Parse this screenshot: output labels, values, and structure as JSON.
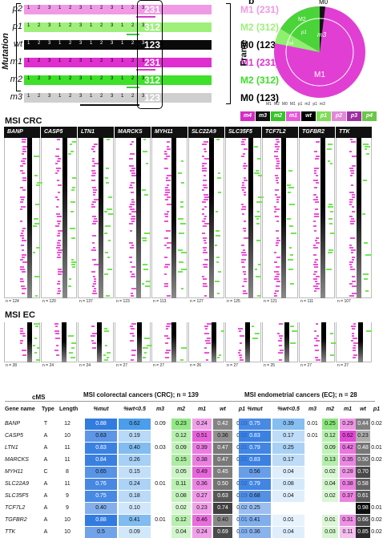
{
  "panel_a": {
    "axis_label": "Mutation",
    "frame_label": "Frame",
    "rows": [
      {
        "label": "p2",
        "code": "M1 (231)",
        "hl": "231",
        "color": "#f09ae6",
        "seq": "1 2 3 1 2 3 1 2 3 1 2 3"
      },
      {
        "label": "p1",
        "code": "M2 (312)",
        "hl": "312",
        "color": "#9ef07a",
        "seq": "1 2 3 1 2 3 1 2 3 1 2 3"
      },
      {
        "label": "wt",
        "code": "M0 (123)",
        "hl": "123",
        "color": "#0a0a0a",
        "seq": "1 2 3 1 2 3 1 2 3 1 2 3"
      },
      {
        "label": "m1",
        "code": "M1 (231)",
        "hl": "231",
        "color": "#e02fd0",
        "seq": "1 2 3 1 2 3 1 2 3 1 2 3"
      },
      {
        "label": "m2",
        "code": "M2 (312)",
        "hl": "312",
        "color": "#3ee02a",
        "seq": "1 2 3 1 2 3 1 2 3 1 2 3"
      },
      {
        "label": "m3",
        "code": "M0 (123)",
        "hl": "123",
        "color": "#cfcfcf",
        "seq": "1 2 3 1 2 3 1 2 3 1 2 3"
      }
    ]
  },
  "panel_b_pie": {
    "corner_label": "b",
    "labels": {
      "m0": "M0",
      "m1": "M1",
      "m2": "M2",
      "p1": "p1",
      "m3": "m3",
      "m4": "m4"
    }
  },
  "legend": {
    "items": [
      "M1",
      "M2",
      "M0",
      "M1",
      "p1",
      "m2",
      "p1",
      "m3"
    ],
    "chips": [
      {
        "label": "m4",
        "color": "#d12fc3"
      },
      {
        "label": "m3",
        "color": "#111111"
      },
      {
        "label": "m2",
        "color": "#38c32a"
      },
      {
        "label": "m1",
        "color": "#e45ad8"
      },
      {
        "label": "wt",
        "color": "#000000"
      },
      {
        "label": "p1",
        "color": "#7fdc5a"
      },
      {
        "label": "p2",
        "color": "#e388d9"
      },
      {
        "label": "p3",
        "color": "#9b2fa0"
      },
      {
        "label": "p4",
        "color": "#6bc64b"
      }
    ]
  },
  "msi_crc": {
    "title": "MSI CRC",
    "genes": [
      "BANP",
      "CASP5",
      "LTN1",
      "MARCKS",
      "MYH11",
      "SLC22A9",
      "SLC35F5",
      "TCF7L2",
      "TGFBR2",
      "TTK"
    ],
    "n": [
      "n = 124",
      "n = 120",
      "n = 137",
      "n = 123",
      "n = 113",
      "n = 127",
      "n = 125",
      "n = 121",
      "n = 111",
      "n = 107"
    ]
  },
  "msi_ec": {
    "title": "MSI EC",
    "n": [
      "n = 28",
      "n = 24",
      "n = 24",
      "n = 27",
      "n = 27",
      "n = 26",
      "n = 27",
      "n = 25",
      "n = 27",
      "n = 27"
    ]
  },
  "table": {
    "cms_label": "cMS",
    "crc_header": "MSI colorectal cancers (CRC); n = 139",
    "ec_header": "MSI endometrial cancers (EC); n = 28",
    "col_gene": "Gene name",
    "col_type": "Type",
    "col_length": "Length",
    "sub_cols": [
      "%mut",
      "%wt<0.5",
      "m3",
      "m2",
      "m1",
      "wt",
      "p1"
    ],
    "rows": [
      {
        "gene": "BANP",
        "type": "T",
        "len": "12",
        "crc": [
          "0.88",
          "0.62",
          "0.09",
          "0.23",
          "0.24",
          "0.42",
          "0.03"
        ],
        "ec": [
          "0.75",
          "0.39",
          "0.01",
          "0.25",
          "0.29",
          "0.44",
          "0.02"
        ]
      },
      {
        "gene": "CASP5",
        "type": "A",
        "len": "10",
        "crc": [
          "0.63",
          "0.19",
          "",
          "0.12",
          "0.51",
          "0.36",
          "0.02"
        ],
        "ec": [
          "0.83",
          "0.17",
          "0.01",
          "0.12",
          "0.62",
          "0.23",
          ""
        ]
      },
      {
        "gene": "LTN1",
        "type": "A",
        "len": "11",
        "crc": [
          "0.83",
          "0.40",
          "0.03",
          "0.09",
          "0.39",
          "0.47",
          "0.01"
        ],
        "ec": [
          "0.79",
          "0.25",
          "",
          "0.09",
          "0.42",
          "0.48",
          "0.01"
        ]
      },
      {
        "gene": "MARCKS",
        "type": "A",
        "len": "11",
        "crc": [
          "0.84",
          "0.26",
          "",
          "0.15",
          "0.38",
          "0.47",
          "0.01"
        ],
        "ec": [
          "0.83",
          "0.17",
          "",
          "0.13",
          "0.35",
          "0.50",
          "0.02"
        ]
      },
      {
        "gene": "MYH11",
        "type": "C",
        "len": "8",
        "crc": [
          "0.65",
          "0.15",
          "",
          "0.05",
          "0.49",
          "0.45",
          ""
        ],
        "ec": [
          "0.56",
          "0.04",
          "",
          "0.02",
          "0.28",
          "0.70",
          ""
        ]
      },
      {
        "gene": "SLC22A9",
        "type": "A",
        "len": "11",
        "crc": [
          "0.76",
          "0.24",
          "0.01",
          "0.11",
          "0.36",
          "0.50",
          "0.02"
        ],
        "ec": [
          "0.79",
          "0.08",
          "",
          "0.04",
          "0.38",
          "0.58",
          ""
        ]
      },
      {
        "gene": "SLC35F5",
        "type": "A",
        "len": "9",
        "crc": [
          "0.75",
          "0.18",
          "",
          "0.08",
          "0.27",
          "0.63",
          "0.03"
        ],
        "ec": [
          "0.68",
          "0.04",
          "",
          "0.02",
          "0.37",
          "0.61",
          ""
        ]
      },
      {
        "gene": "TCF7L2",
        "type": "A",
        "len": "9",
        "crc": [
          "0.40",
          "0.10",
          "",
          "0.02",
          "0.23",
          "0.74",
          "0.02"
        ],
        "ec": [
          "0.25",
          "",
          "",
          "",
          "",
          "0.98",
          "0.01"
        ]
      },
      {
        "gene": "TGFBR2",
        "type": "A",
        "len": "10",
        "crc": [
          "0.88",
          "0.41",
          "0.01",
          "0.12",
          "0.46",
          "0.40",
          "0.01"
        ],
        "ec": [
          "0.41",
          "0.01",
          "",
          "0.01",
          "0.31",
          "0.66",
          "0.02"
        ]
      },
      {
        "gene": "TTK",
        "type": "A",
        "len": "10",
        "crc": [
          "0.5",
          "0.09",
          "",
          "0.04",
          "0.24",
          "0.69",
          "0.03"
        ],
        "ec": [
          "0.36",
          "0.04",
          "",
          "0.03",
          "0.11",
          "0.85",
          "0.02"
        ]
      }
    ]
  }
}
